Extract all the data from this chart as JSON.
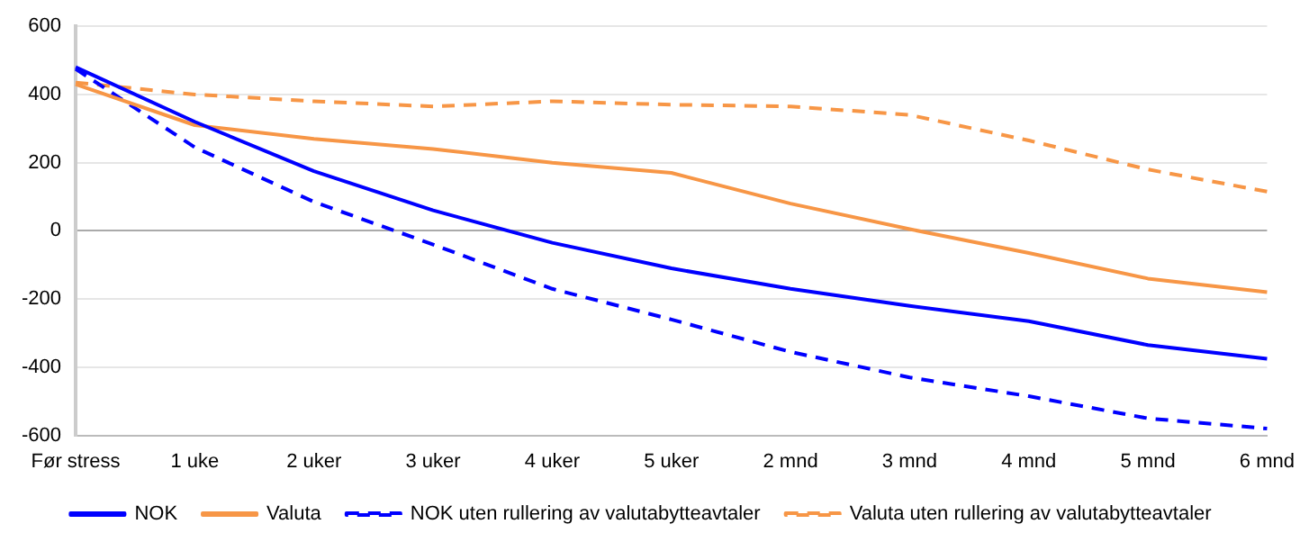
{
  "chart_data": {
    "type": "line",
    "categories": [
      "Før stress",
      "1 uke",
      "2 uker",
      "3 uker",
      "4 uker",
      "5 uker",
      "2 mnd",
      "3 mnd",
      "4 mnd",
      "5 mnd",
      "6 mnd"
    ],
    "ylim": [
      -600,
      600
    ],
    "yticks": [
      -600,
      -400,
      -200,
      0,
      200,
      400,
      600
    ],
    "grid": "y",
    "legend": "bottom",
    "marker": "none",
    "series": [
      {
        "name": "NOK",
        "color": "#0000ff",
        "line_style": "solid",
        "values": [
          480,
          320,
          175,
          60,
          -35,
          -110,
          -170,
          -220,
          -265,
          -335,
          -375
        ]
      },
      {
        "name": "Valuta",
        "color": "#f79646",
        "line_style": "solid",
        "values": [
          430,
          310,
          270,
          240,
          200,
          170,
          80,
          5,
          -65,
          -140,
          -180
        ]
      },
      {
        "name": "NOK uten rullering av valutabytteavtaler",
        "color": "#0000ff",
        "line_style": "dashed",
        "values": [
          475,
          245,
          85,
          -40,
          -170,
          -260,
          -355,
          -430,
          -485,
          -550,
          -580
        ]
      },
      {
        "name": "Valuta uten rullering av valutabytteavtaler",
        "color": "#f79646",
        "line_style": "dashed",
        "values": [
          435,
          400,
          380,
          365,
          380,
          370,
          365,
          340,
          265,
          180,
          115
        ]
      }
    ]
  }
}
